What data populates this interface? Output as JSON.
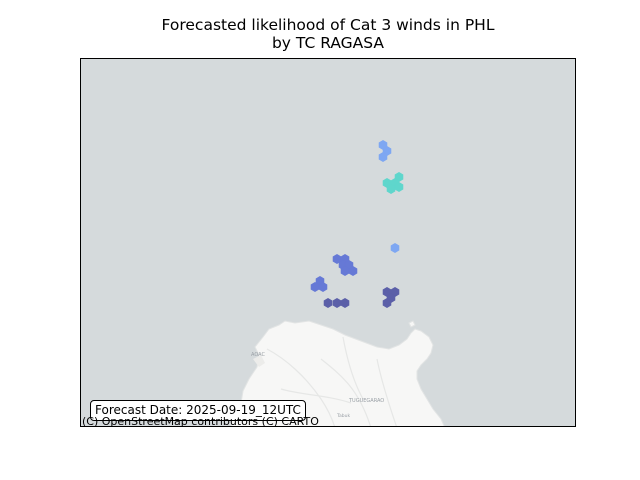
{
  "figure": {
    "title_line1": "Forecasted likelihood of Cat 3 winds in PHL",
    "title_line2": "by TC RAGASA",
    "forecast_label": "Forecast Date: 2025-09-19_12UTC",
    "attribution": "(C) OpenStreetMap contributors (C) CARTO"
  },
  "map": {
    "place_labels": [
      "AOAC",
      "TUGUEGARAO",
      "Tabuk"
    ],
    "colors": {
      "sea": "#d5dadc",
      "land": "#f7f7f6",
      "hex_light_blue": "#7ea7f2",
      "hex_cyan": "#5fd6cc",
      "hex_medium_blue": "#6679d6",
      "hex_dark_blue": "#5b5fa8"
    },
    "hex_clusters": [
      {
        "group": "north",
        "color_key": "hex_light_blue",
        "count": 3
      },
      {
        "group": "north-east",
        "color_key": "hex_cyan",
        "count": 5
      },
      {
        "group": "east-single",
        "color_key": "hex_light_blue",
        "count": 1
      },
      {
        "group": "central",
        "color_key": "hex_medium_blue",
        "count": 6
      },
      {
        "group": "west",
        "color_key": "hex_medium_blue",
        "count": 3
      },
      {
        "group": "south-row",
        "color_key": "hex_dark_blue",
        "count": 3
      },
      {
        "group": "south-east",
        "color_key": "hex_dark_blue",
        "count": 4
      }
    ]
  }
}
